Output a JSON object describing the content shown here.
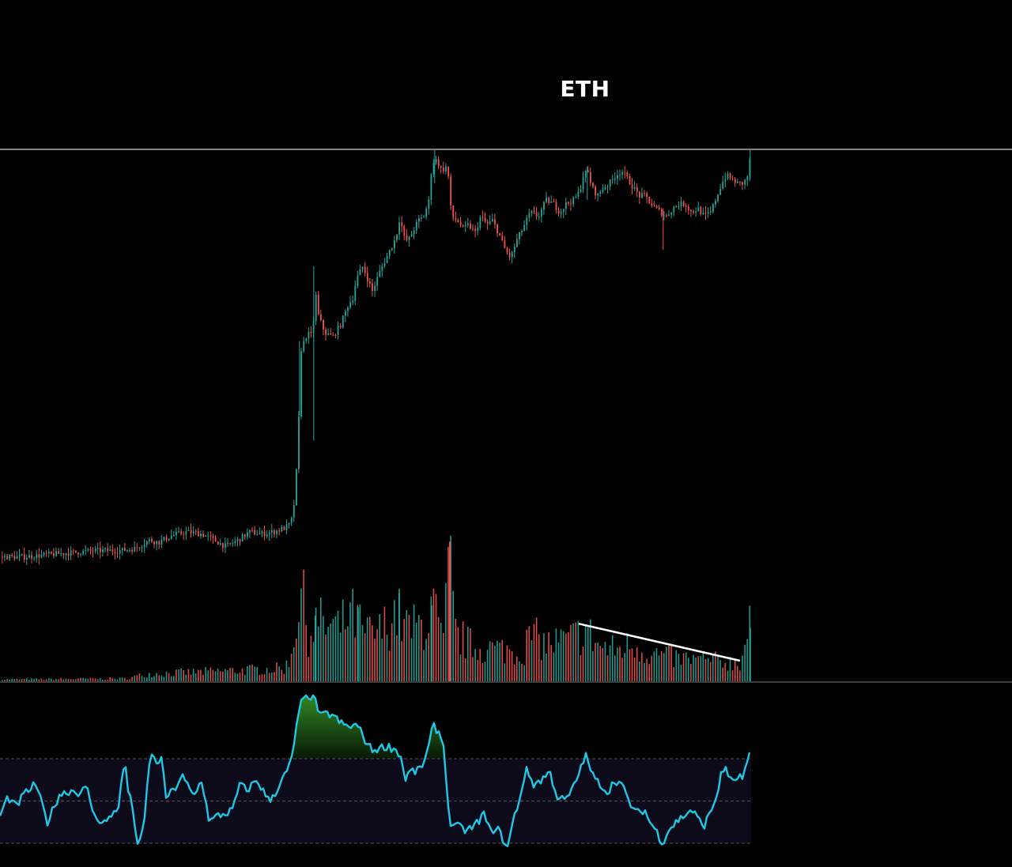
{
  "chart_data": [
    {
      "type": "candlestick",
      "title": "ETH",
      "xlabel": "",
      "ylabel": "",
      "ylim": [
        0,
        100
      ],
      "grid": false,
      "colors": {
        "up": "#26a69a",
        "down": "#ef5350",
        "background": "#000000",
        "resistance_line": "#b0b0b0",
        "trend_line": "#ffffff"
      },
      "resistance_level": 100,
      "close_path": [
        [
          0,
          2
        ],
        [
          30,
          2
        ],
        [
          60,
          2.5
        ],
        [
          90,
          3
        ],
        [
          120,
          3.5
        ],
        [
          150,
          3.5
        ],
        [
          170,
          4
        ],
        [
          188,
          6
        ],
        [
          200,
          5.5
        ],
        [
          215,
          7
        ],
        [
          235,
          8
        ],
        [
          255,
          7.5
        ],
        [
          270,
          6
        ],
        [
          285,
          4.5
        ],
        [
          300,
          6
        ],
        [
          315,
          8
        ],
        [
          330,
          7.5
        ],
        [
          345,
          8
        ],
        [
          360,
          9
        ],
        [
          367,
          10
        ],
        [
          372,
          16
        ],
        [
          376,
          29
        ],
        [
          380,
          52
        ],
        [
          384,
          54
        ],
        [
          388,
          56
        ],
        [
          392,
          55
        ],
        [
          395,
          57
        ],
        [
          398,
          66
        ],
        [
          402,
          60
        ],
        [
          410,
          56
        ],
        [
          420,
          55
        ],
        [
          430,
          58
        ],
        [
          440,
          63
        ],
        [
          445,
          64
        ],
        [
          450,
          69
        ],
        [
          458,
          72
        ],
        [
          470,
          66
        ],
        [
          480,
          71
        ],
        [
          490,
          75
        ],
        [
          500,
          79
        ],
        [
          505,
          84
        ],
        [
          510,
          79
        ],
        [
          515,
          78
        ],
        [
          520,
          80
        ],
        [
          528,
          83
        ],
        [
          535,
          84
        ],
        [
          542,
          88
        ],
        [
          545,
          96
        ],
        [
          549,
          98
        ],
        [
          553,
          97
        ],
        [
          558,
          95
        ],
        [
          563,
          96
        ],
        [
          567,
          93
        ],
        [
          570,
          84
        ],
        [
          578,
          83
        ],
        [
          585,
          81
        ],
        [
          592,
          82
        ],
        [
          600,
          80
        ],
        [
          607,
          84
        ],
        [
          615,
          82
        ],
        [
          622,
          83
        ],
        [
          630,
          80
        ],
        [
          638,
          76
        ],
        [
          645,
          74
        ],
        [
          652,
          78
        ],
        [
          660,
          81
        ],
        [
          670,
          85
        ],
        [
          680,
          84
        ],
        [
          690,
          88
        ],
        [
          700,
          87
        ],
        [
          707,
          85
        ],
        [
          715,
          87
        ],
        [
          725,
          88
        ],
        [
          732,
          90
        ],
        [
          737,
          94
        ],
        [
          742,
          95
        ],
        [
          748,
          91
        ],
        [
          755,
          89
        ],
        [
          762,
          91
        ],
        [
          770,
          92
        ],
        [
          778,
          94
        ],
        [
          786,
          95
        ],
        [
          793,
          93
        ],
        [
          800,
          91
        ],
        [
          808,
          89
        ],
        [
          816,
          89
        ],
        [
          822,
          87
        ],
        [
          828,
          86
        ],
        [
          835,
          85
        ],
        [
          842,
          84
        ],
        [
          850,
          86
        ],
        [
          858,
          87
        ],
        [
          866,
          87
        ],
        [
          874,
          85
        ],
        [
          882,
          86
        ],
        [
          890,
          84
        ],
        [
          898,
          85
        ],
        [
          906,
          89
        ],
        [
          912,
          92
        ],
        [
          918,
          94
        ],
        [
          924,
          93
        ],
        [
          932,
          92
        ],
        [
          940,
          92
        ],
        [
          945,
          94
        ],
        [
          948,
          98
        ],
        [
          950,
          99
        ]
      ],
      "volume_profile": [
        [
          0,
          1
        ],
        [
          160,
          1.5
        ],
        [
          185,
          4
        ],
        [
          250,
          5
        ],
        [
          360,
          7
        ],
        [
          368,
          15
        ],
        [
          372,
          30
        ],
        [
          380,
          48
        ],
        [
          390,
          25
        ],
        [
          400,
          32
        ],
        [
          410,
          30
        ],
        [
          430,
          28
        ],
        [
          440,
          36
        ],
        [
          450,
          33
        ],
        [
          460,
          25
        ],
        [
          480,
          26
        ],
        [
          500,
          38
        ],
        [
          510,
          30
        ],
        [
          520,
          28
        ],
        [
          540,
          32
        ],
        [
          545,
          42
        ],
        [
          560,
          20
        ],
        [
          568,
          65
        ],
        [
          575,
          25
        ],
        [
          600,
          18
        ],
        [
          640,
          17
        ],
        [
          660,
          15
        ],
        [
          670,
          25
        ],
        [
          690,
          20
        ],
        [
          720,
          22
        ],
        [
          740,
          28
        ],
        [
          745,
          25
        ],
        [
          760,
          18
        ],
        [
          780,
          17
        ],
        [
          800,
          20
        ],
        [
          820,
          15
        ],
        [
          860,
          12
        ],
        [
          900,
          11
        ],
        [
          935,
          10
        ],
        [
          948,
          30
        ],
        [
          950,
          5
        ]
      ],
      "volume_trendline": {
        "start": [
          732,
          28
        ],
        "end": [
          936,
          10
        ]
      }
    },
    {
      "type": "line",
      "title": "",
      "xlabel": "",
      "ylabel": "",
      "ylim": [
        0,
        100
      ],
      "reference_levels": [
        70,
        50,
        30
      ],
      "colors": {
        "line": "#1ec8e6",
        "band": "#0d0b1a",
        "overbought_fill": "#3aa02a",
        "reference": "#555555"
      },
      "series": [
        {
          "values": [
            [
              0,
              43
            ],
            [
              10,
              52
            ],
            [
              20,
              47
            ],
            [
              30,
              53
            ],
            [
              45,
              58
            ],
            [
              60,
              40
            ],
            [
              75,
              53
            ],
            [
              90,
              55
            ],
            [
              100,
              54
            ],
            [
              110,
              56
            ],
            [
              120,
              42
            ],
            [
              135,
              40
            ],
            [
              150,
              48
            ],
            [
              158,
              70
            ],
            [
              162,
              55
            ],
            [
              168,
              46
            ],
            [
              175,
              27
            ],
            [
              182,
              38
            ],
            [
              190,
              73
            ],
            [
              197,
              68
            ],
            [
              204,
              70
            ],
            [
              210,
              52
            ],
            [
              220,
              55
            ],
            [
              230,
              62
            ],
            [
              245,
              52
            ],
            [
              255,
              60
            ],
            [
              265,
              40
            ],
            [
              275,
              43
            ],
            [
              285,
              44
            ],
            [
              295,
              46
            ],
            [
              303,
              58
            ],
            [
              312,
              55
            ],
            [
              325,
              60
            ],
            [
              340,
              50
            ],
            [
              350,
              55
            ],
            [
              360,
              62
            ],
            [
              368,
              68
            ],
            [
              375,
              85
            ],
            [
              382,
              98
            ],
            [
              390,
              100
            ],
            [
              398,
              99
            ],
            [
              405,
              90
            ],
            [
              412,
              91
            ],
            [
              420,
              91
            ],
            [
              430,
              87
            ],
            [
              440,
              85
            ],
            [
              452,
              86
            ],
            [
              460,
              80
            ],
            [
              470,
              74
            ],
            [
              480,
              75
            ],
            [
              490,
              76
            ],
            [
              502,
              74
            ],
            [
              508,
              70
            ],
            [
              512,
              60
            ],
            [
              518,
              64
            ],
            [
              528,
              64
            ],
            [
              536,
              68
            ],
            [
              542,
              75
            ],
            [
              548,
              86
            ],
            [
              556,
              82
            ],
            [
              562,
              75
            ],
            [
              568,
              40
            ],
            [
              578,
              38
            ],
            [
              590,
              36
            ],
            [
              600,
              38
            ],
            [
              612,
              44
            ],
            [
              620,
              35
            ],
            [
              628,
              38
            ],
            [
              636,
              32
            ],
            [
              642,
              28
            ],
            [
              650,
              42
            ],
            [
              658,
              52
            ],
            [
              665,
              65
            ],
            [
              675,
              58
            ],
            [
              685,
              60
            ],
            [
              695,
              64
            ],
            [
              705,
              52
            ],
            [
              715,
              50
            ],
            [
              725,
              56
            ],
            [
              735,
              66
            ],
            [
              740,
              72
            ],
            [
              746,
              66
            ],
            [
              752,
              60
            ],
            [
              760,
              58
            ],
            [
              768,
              54
            ],
            [
              778,
              60
            ],
            [
              786,
              58
            ],
            [
              795,
              50
            ],
            [
              805,
              44
            ],
            [
              815,
              46
            ],
            [
              822,
              40
            ],
            [
              830,
              36
            ],
            [
              838,
              30
            ],
            [
              845,
              36
            ],
            [
              855,
              40
            ],
            [
              865,
              43
            ],
            [
              875,
              46
            ],
            [
              882,
              42
            ],
            [
              890,
              38
            ],
            [
              898,
              44
            ],
            [
              906,
              52
            ],
            [
              912,
              62
            ],
            [
              918,
              66
            ],
            [
              926,
              58
            ],
            [
              934,
              62
            ],
            [
              940,
              60
            ],
            [
              946,
              70
            ],
            [
              950,
              72
            ]
          ]
        }
      ]
    }
  ]
}
